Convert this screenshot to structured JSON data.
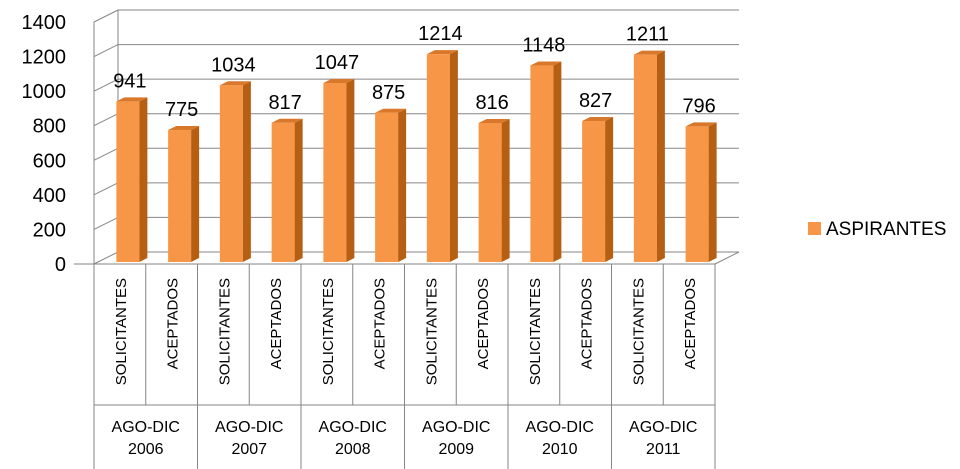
{
  "chart_data": {
    "type": "bar",
    "title": "",
    "xlabel": "",
    "ylabel": "",
    "ylim": [
      0,
      1400
    ],
    "yticks": [
      0,
      200,
      400,
      600,
      800,
      1000,
      1200,
      1400
    ],
    "grid": true,
    "legend_position": "right",
    "style": "3d-column",
    "groups": [
      {
        "label": "AGO-DIC 2006",
        "categories": [
          "SOLICITANTES",
          "ACEPTADOS"
        ]
      },
      {
        "label": "AGO-DIC 2007",
        "categories": [
          "SOLICITANTES",
          "ACEPTADOS"
        ]
      },
      {
        "label": "AGO-DIC 2008",
        "categories": [
          "SOLICITANTES",
          "ACEPTADOS"
        ]
      },
      {
        "label": "AGO-DIC 2009",
        "categories": [
          "SOLICITANTES",
          "ACEPTADOS"
        ]
      },
      {
        "label": "AGO-DIC 2010",
        "categories": [
          "SOLICITANTES",
          "ACEPTADOS"
        ]
      },
      {
        "label": "AGO-DIC 2011",
        "categories": [
          "SOLICITANTES",
          "ACEPTADOS"
        ]
      }
    ],
    "series": [
      {
        "name": "ASPIRANTES",
        "color": "#F79646",
        "values": [
          941,
          775,
          1034,
          817,
          1047,
          875,
          1214,
          816,
          1148,
          827,
          1211,
          796
        ]
      }
    ]
  }
}
